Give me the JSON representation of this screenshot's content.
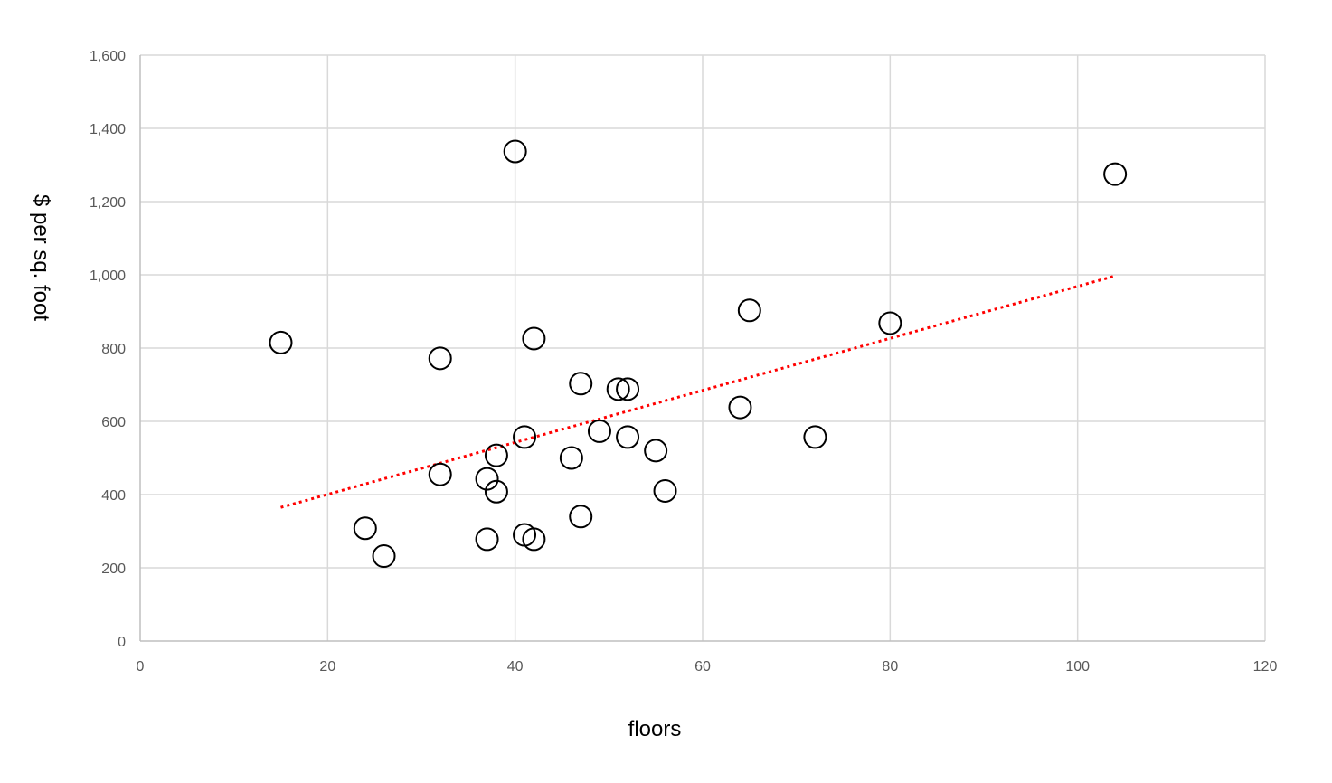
{
  "chart_data": {
    "type": "scatter",
    "title": "",
    "xlabel": "floors",
    "ylabel": "$ per sq. foot",
    "xlim": [
      0,
      120
    ],
    "ylim": [
      0,
      1600
    ],
    "x_ticks": [
      0,
      20,
      40,
      60,
      80,
      100,
      120
    ],
    "y_ticks": [
      0,
      200,
      400,
      600,
      800,
      1000,
      1200,
      1400,
      1600
    ],
    "x_tick_labels": [
      "0",
      "20",
      "40",
      "60",
      "80",
      "100",
      "120"
    ],
    "y_tick_labels": [
      "0",
      "200",
      "400",
      "600",
      "800",
      "1,000",
      "1,200",
      "1,400",
      "1,600"
    ],
    "grid": true,
    "legend": "none",
    "series": [
      {
        "marker": "open-circle",
        "color": "#000000",
        "x": [
          15,
          24,
          26,
          32,
          32,
          37,
          37,
          38,
          38,
          40,
          41,
          41,
          42,
          42,
          46,
          47,
          47,
          49,
          51,
          52,
          52,
          55,
          56,
          64,
          65,
          72,
          80,
          104
        ],
        "y": [
          815,
          308,
          232,
          772,
          455,
          443,
          278,
          507,
          408,
          1337,
          557,
          290,
          826,
          278,
          500,
          703,
          340,
          573,
          688,
          688,
          557,
          520,
          410,
          638,
          903,
          557,
          868,
          1275
        ]
      }
    ],
    "trendline": {
      "type": "linear",
      "style": "dotted",
      "color": "#ff0000",
      "x": [
        15,
        104
      ],
      "y": [
        365,
        997
      ]
    }
  }
}
